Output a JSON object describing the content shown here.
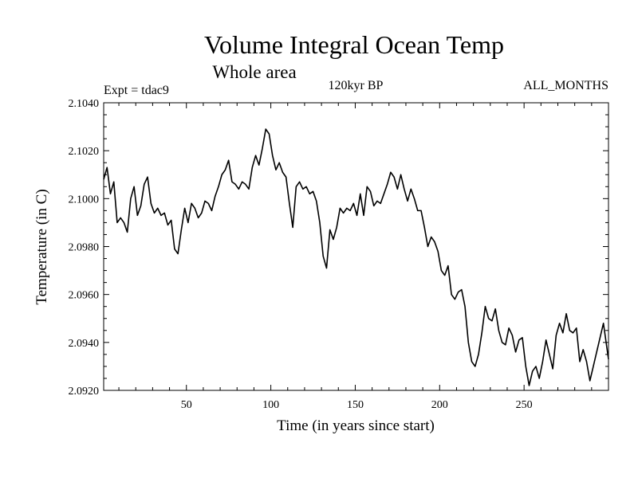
{
  "chart_data": {
    "type": "line",
    "title": "Volume Integral Ocean Temp",
    "subtitle": "Whole area",
    "annotations": {
      "left": "Expt = tdac9",
      "center": "120kyr BP",
      "right": "ALL_MONTHS"
    },
    "xlabel": "Time (in years since start)",
    "ylabel": "Temperature (in C)",
    "xlim": [
      1,
      300
    ],
    "ylim": [
      2.092,
      2.104
    ],
    "xticks": [
      50,
      100,
      150,
      200,
      250
    ],
    "xtick_labels": [
      "50",
      "100",
      "150",
      "200",
      "250"
    ],
    "yticks": [
      2.092,
      2.094,
      2.096,
      2.098,
      2.1,
      2.102,
      2.104
    ],
    "ytick_labels": [
      "2.0920",
      "2.0940",
      "2.0960",
      "2.0980",
      "2.1000",
      "2.1020",
      "2.1040"
    ],
    "series": [
      {
        "name": "tdac9",
        "x": [
          1,
          3,
          5,
          7,
          9,
          11,
          13,
          15,
          17,
          19,
          21,
          23,
          25,
          27,
          29,
          31,
          33,
          35,
          37,
          39,
          41,
          43,
          45,
          47,
          49,
          51,
          53,
          55,
          57,
          59,
          61,
          63,
          65,
          67,
          69,
          71,
          73,
          75,
          77,
          79,
          81,
          83,
          85,
          87,
          89,
          91,
          93,
          95,
          97,
          99,
          101,
          103,
          105,
          107,
          109,
          111,
          113,
          115,
          117,
          119,
          121,
          123,
          125,
          127,
          129,
          131,
          133,
          135,
          137,
          139,
          141,
          143,
          145,
          147,
          149,
          151,
          153,
          155,
          157,
          159,
          161,
          163,
          165,
          167,
          169,
          171,
          173,
          175,
          177,
          179,
          181,
          183,
          185,
          187,
          189,
          191,
          193,
          195,
          197,
          199,
          201,
          203,
          205,
          207,
          209,
          211,
          213,
          215,
          217,
          219,
          221,
          223,
          225,
          227,
          229,
          231,
          233,
          235,
          237,
          239,
          241,
          243,
          245,
          247,
          249,
          251,
          253,
          255,
          257,
          259,
          261,
          263,
          265,
          267,
          269,
          271,
          273,
          275,
          277,
          279,
          281,
          283,
          285,
          287,
          289,
          291,
          293,
          295,
          297,
          299,
          300
        ],
        "y": [
          2.1008,
          2.1013,
          2.1002,
          2.1007,
          2.099,
          2.0992,
          2.099,
          2.0986,
          2.1,
          2.1005,
          2.0993,
          2.0997,
          2.1006,
          2.1009,
          2.0998,
          2.0994,
          2.0996,
          2.0993,
          2.0994,
          2.0989,
          2.0991,
          2.0979,
          2.0977,
          2.0987,
          2.0996,
          2.099,
          2.0998,
          2.0996,
          2.0992,
          2.0994,
          2.0999,
          2.0998,
          2.0995,
          2.1001,
          2.1005,
          2.101,
          2.1012,
          2.1016,
          2.1007,
          2.1006,
          2.1004,
          2.1007,
          2.1006,
          2.1004,
          2.1013,
          2.1018,
          2.1014,
          2.1021,
          2.1029,
          2.1027,
          2.1018,
          2.1012,
          2.1015,
          2.1011,
          2.1009,
          2.0998,
          2.0988,
          2.1005,
          2.1007,
          2.1004,
          2.1005,
          2.1002,
          2.1003,
          2.0999,
          2.099,
          2.0976,
          2.0971,
          2.0987,
          2.0983,
          2.0988,
          2.0996,
          2.0994,
          2.0996,
          2.0995,
          2.0998,
          2.0993,
          2.1002,
          2.0993,
          2.1005,
          2.1003,
          2.0997,
          2.0999,
          2.0998,
          2.1002,
          2.1006,
          2.1011,
          2.1009,
          2.1004,
          2.101,
          2.1004,
          2.0999,
          2.1004,
          2.1,
          2.0995,
          2.0995,
          2.0988,
          2.098,
          2.0984,
          2.0982,
          2.0978,
          2.097,
          2.0968,
          2.0972,
          2.096,
          2.0958,
          2.0961,
          2.0962,
          2.0955,
          2.094,
          2.0932,
          2.093,
          2.0935,
          2.0944,
          2.0955,
          2.095,
          2.0949,
          2.0954,
          2.0945,
          2.094,
          2.0939,
          2.0946,
          2.0943,
          2.0936,
          2.0941,
          2.0942,
          2.093,
          2.0922,
          2.0928,
          2.093,
          2.0925,
          2.0932,
          2.0941,
          2.0935,
          2.0929,
          2.0943,
          2.0948,
          2.0944,
          2.0952,
          2.0945,
          2.0944,
          2.0946,
          2.0932,
          2.0937,
          2.0932,
          2.0924,
          2.093,
          2.0936,
          2.0942,
          2.0948,
          2.0938,
          2.0933
        ]
      }
    ]
  }
}
